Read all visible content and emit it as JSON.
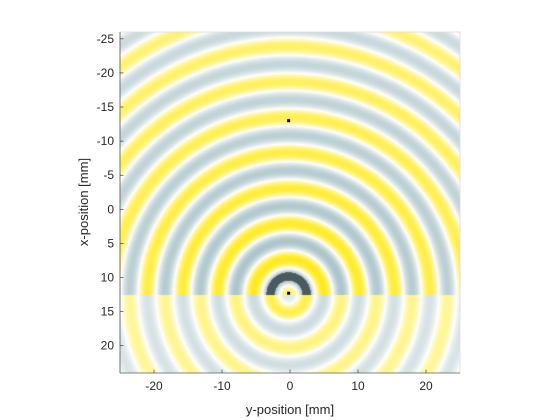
{
  "chart_data": {
    "type": "heatmap",
    "title": "",
    "xlabel": "y-position [mm]",
    "ylabel": "x-position [mm]",
    "xlim": [
      -25,
      25
    ],
    "ylim": [
      -26,
      24
    ],
    "y_axis_reversed": true,
    "xticks": [
      -20,
      -10,
      0,
      10,
      20
    ],
    "yticks": [
      -25,
      -20,
      -15,
      -10,
      -5,
      0,
      5,
      10,
      15,
      20
    ],
    "grid": false,
    "colormap": {
      "positive": "#ffe800",
      "negative": "#9fbcc2",
      "zero": "#ffffff",
      "peak_positive": "#ff8c00",
      "peak_negative": "#4a5a60"
    },
    "wave_field": {
      "description_role": "circular wavefronts from a point source",
      "source_center": {
        "y_mm": -0.2,
        "x_mm": 12.5
      },
      "wavelength_mm": 5.2,
      "mirror_interface_x_mm": 12.5
    },
    "markers": [
      {
        "name": "point-marker-upper",
        "y_mm": -0.2,
        "x_mm": -13.0,
        "color": "#000000"
      },
      {
        "name": "point-marker-source",
        "y_mm": -0.2,
        "x_mm": 12.3,
        "color": "#000000"
      }
    ]
  }
}
